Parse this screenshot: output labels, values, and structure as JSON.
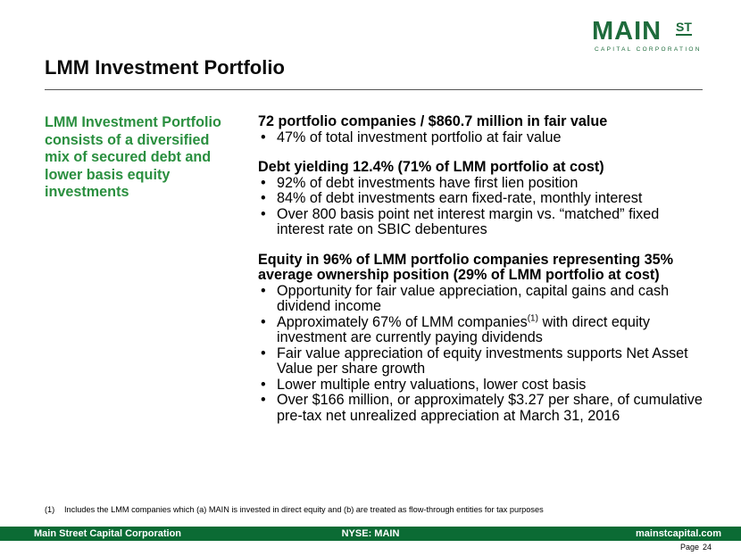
{
  "logo": {
    "main": "MAIN",
    "st": "ST",
    "sub": "CAPITAL CORPORATION"
  },
  "title": "LMM Investment Portfolio",
  "sidebar": {
    "text": "LMM Investment Portfolio consists of a diversified mix of secured debt and lower basis equity investments"
  },
  "sections": [
    {
      "heading": "72 portfolio companies / $860.7 million in fair value",
      "bullets": [
        "47% of total investment portfolio at fair value"
      ]
    },
    {
      "heading": "Debt yielding 12.4% (71% of LMM portfolio at cost)",
      "bullets": [
        "92% of debt investments have first lien position",
        "84% of debt investments earn fixed-rate, monthly interest",
        "Over 800 basis point net interest margin vs. “matched” fixed interest rate on SBIC debentures"
      ]
    },
    {
      "heading": "Equity in 96% of LMM portfolio companies representing 35% average ownership position (29% of LMM portfolio at cost)",
      "bullets": [
        "Opportunity for fair value appreciation, capital gains and cash dividend income",
        {
          "pre": "Approximately 67% of LMM companies",
          "sup": "(1)",
          "post": " with direct equity investment are currently paying dividends"
        },
        "Fair value appreciation of equity investments supports Net Asset Value per share growth",
        "Lower multiple entry valuations, lower cost basis",
        "Over $166 million, or approximately $3.27 per share, of cumulative pre-tax net unrealized appreciation at March 31, 2016"
      ]
    }
  ],
  "footnote": {
    "num": "(1)",
    "text": "Includes the LMM companies which (a) MAIN is invested in direct equity and (b) are treated as flow-through entities for tax purposes"
  },
  "footer": {
    "left": "Main Street Capital Corporation",
    "center": "NYSE: MAIN",
    "right": "mainstcapital.com"
  },
  "page": {
    "label": "Page",
    "number": "24"
  },
  "colors": {
    "brand_green": "#1d6b3b",
    "accent_green": "#2a8f3f",
    "footer_bg": "#0b6b34"
  }
}
